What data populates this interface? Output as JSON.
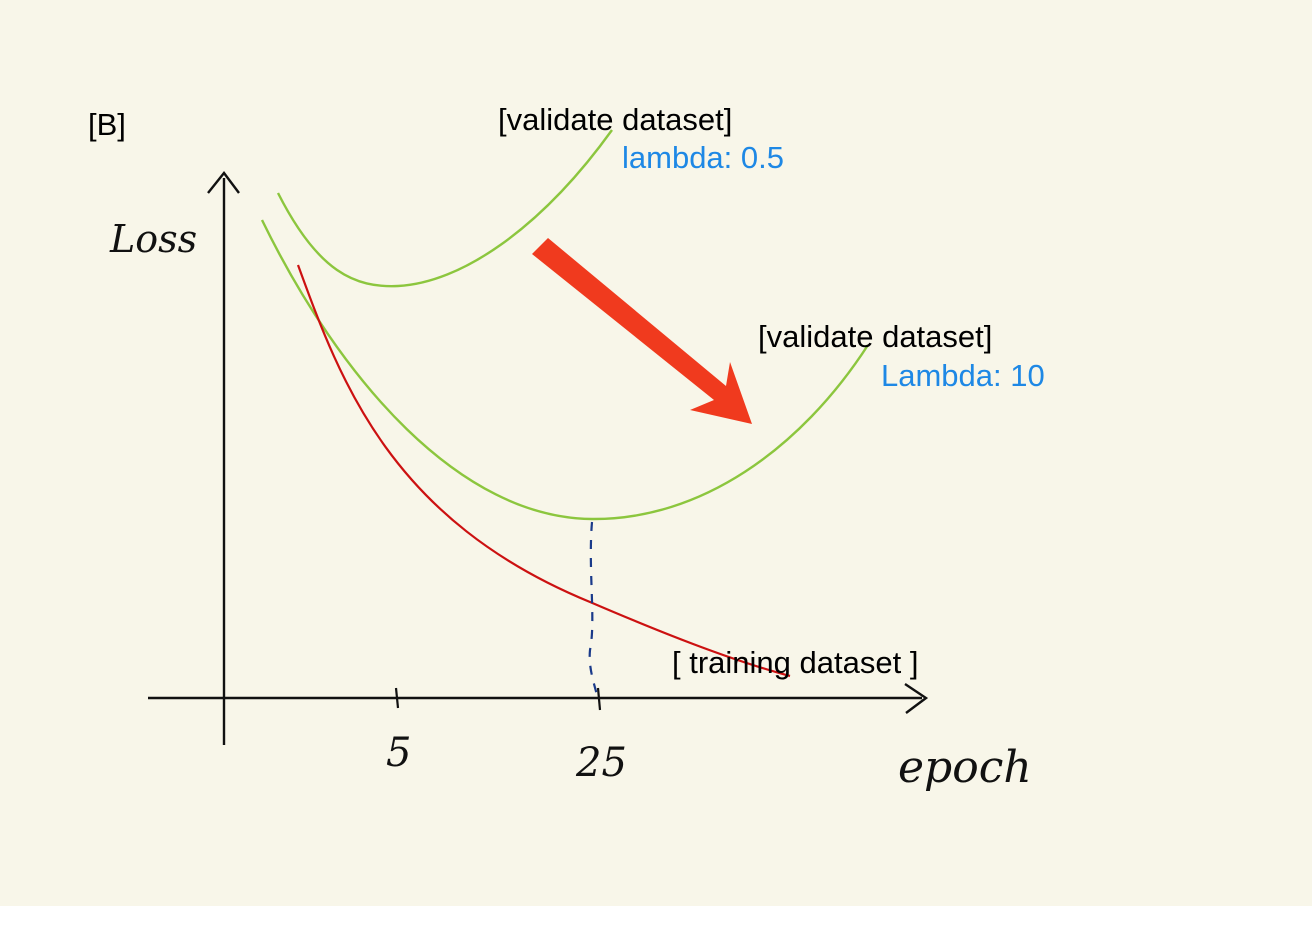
{
  "panel_label": "[B]",
  "axes": {
    "y_label": "Loss",
    "x_label": "epoch",
    "x_ticks": [
      "5",
      "25"
    ]
  },
  "curves": {
    "validate_lambda_05": {
      "label": "[validate dataset]",
      "lambda_label": "lambda: 0.5",
      "color": "#8cc63e"
    },
    "validate_lambda_10": {
      "label": "[validate dataset]",
      "lambda_label": "Lambda: 10",
      "color": "#8cc63e"
    },
    "training": {
      "label": "[ training dataset ]",
      "color": "#cc1111"
    }
  },
  "colors": {
    "lambda_text": "#1e88e5",
    "arrow": "#f03a1e",
    "guide_line": "#1a3a8a"
  }
}
